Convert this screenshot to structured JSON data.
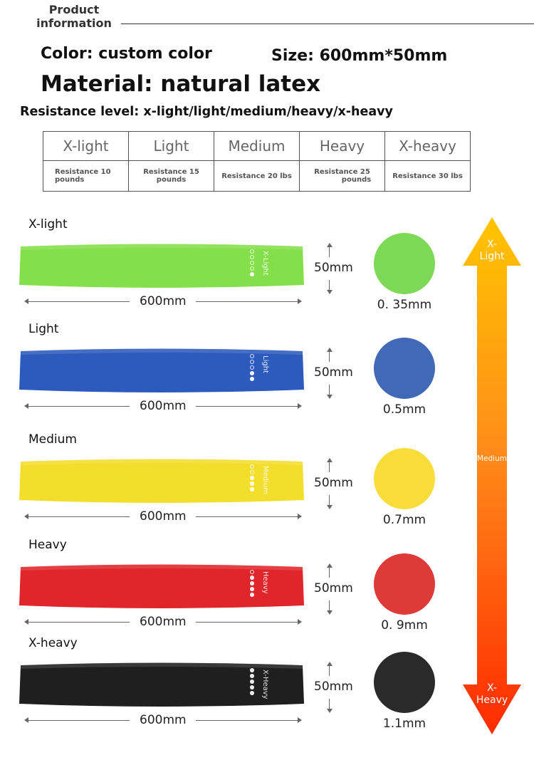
{
  "header": {
    "title_line1": "Product",
    "title_line2": "information"
  },
  "specs": {
    "color": "Color: custom color",
    "size": "Size: 600mm*50mm",
    "material": "Material: natural latex",
    "resistance_level": "Resistance level: x-light/light/medium/heavy/x-heavy"
  },
  "resistance_table": {
    "headers": [
      "X-light",
      "Light",
      "Medium",
      "Heavy",
      "X-heavy"
    ],
    "values": [
      [
        "Resistance 10",
        "pounds"
      ],
      [
        "Resistance 15",
        "pounds"
      ],
      [
        "Resistance 20 lbs"
      ],
      [
        "Resistance 25",
        "pounds"
      ],
      [
        "Resistance 30 lbs"
      ]
    ]
  },
  "bands": [
    {
      "label": "X-light",
      "band_text": "X-Light",
      "length": "600mm",
      "width": "50mm",
      "thickness": "0. 35mm",
      "color": "#7ed957",
      "band_color": "#84e04a",
      "filled_dots": 1
    },
    {
      "label": "Light",
      "band_text": "Light",
      "length": "600mm",
      "width": "50mm",
      "thickness": "0.5mm",
      "color": "#4169b8",
      "band_color": "#2d5bbd",
      "filled_dots": 2
    },
    {
      "label": "Medium",
      "band_text": "Medium",
      "length": "600mm",
      "width": "50mm",
      "thickness": "0.7mm",
      "color": "#f7dc3a",
      "band_color": "#f3de2c",
      "filled_dots": 3
    },
    {
      "label": "Heavy",
      "band_text": "Heavy",
      "length": "600mm",
      "width": "50mm",
      "thickness": "0. 9mm",
      "color": "#de3a38",
      "band_color": "#e0262b",
      "filled_dots": 4
    },
    {
      "label": "X-heavy",
      "band_text": "X-Heavy",
      "length": "600mm",
      "width": "50mm",
      "thickness": "1.1mm",
      "color": "#2a2a2a",
      "band_color": "#1f1f1f",
      "filled_dots": 5
    }
  ],
  "scale_arrow": {
    "top_line1": "X-",
    "top_line2": "Light",
    "middle": "Medium",
    "bottom_line1": "X-",
    "bottom_line2": "Heavy"
  }
}
